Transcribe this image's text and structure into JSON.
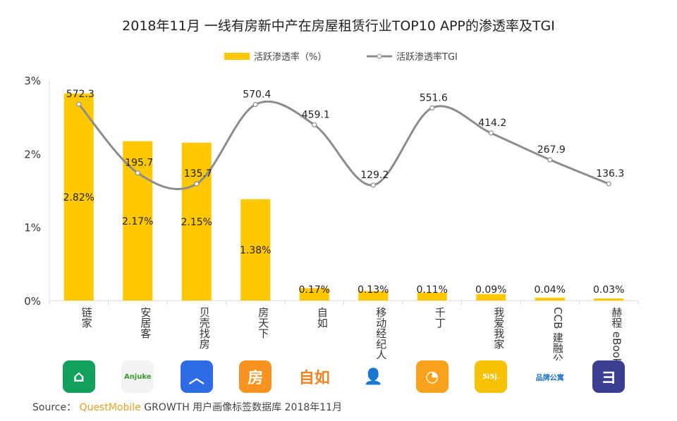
{
  "title": "2018年11月 一线有房新中产在房屋租赁行业TOP10 APP的渗透率及TGI",
  "legend": {
    "bar": "活跃渗透率（%）",
    "line": "活跃渗透率TGI"
  },
  "source": {
    "label": "Source：",
    "brand": "QuestMobile",
    "text": "GROWTH 用户画像标签数据库 2018年11月"
  },
  "colors": {
    "bar": "#ffc800",
    "line": "#8c8c8c"
  },
  "chart_data": {
    "type": "bar",
    "title": "2018年11月 一线有房新中产在房屋租赁行业TOP10 APP的渗透率及TGI",
    "categories": [
      "链家",
      "安居客",
      "贝壳找房",
      "房天下",
      "自如",
      "移动经纪人",
      "千丁",
      "我爱我家",
      "建融公寓 CCB",
      "eBooking 赫程"
    ],
    "series": [
      {
        "name": "活跃渗透率（%）",
        "type": "bar",
        "values": [
          2.82,
          2.17,
          2.15,
          1.38,
          0.17,
          0.13,
          0.11,
          0.09,
          0.04,
          0.03
        ],
        "labels": [
          "2.82%",
          "2.17%",
          "2.15%",
          "1.38%",
          "0.17%",
          "0.13%",
          "0.11%",
          "0.09%",
          "0.04%",
          "0.03%"
        ]
      },
      {
        "name": "活跃渗透率TGI",
        "type": "line",
        "values": [
          572.3,
          195.7,
          135.7,
          570.4,
          459.1,
          129.2,
          551.6,
          414.2,
          267.9,
          136.3
        ],
        "labels": [
          "572.3",
          "195.7",
          "135.7",
          "570.4",
          "459.1",
          "129.2",
          "551.6",
          "414.2",
          "267.9",
          "136.3"
        ]
      }
    ],
    "yticks": [
      "0%",
      "1%",
      "2%",
      "3%"
    ],
    "ylim": [
      0,
      3
    ],
    "y2lim": [
      -503,
      703
    ],
    "grid": false,
    "legend_position": "top-center"
  },
  "icons": [
    {
      "name": "lianjia-icon",
      "text": "⌂",
      "bg": "#12a05c"
    },
    {
      "name": "anjuke-icon",
      "text": "Anjuke",
      "bg": "#f3f3f3"
    },
    {
      "name": "beike-icon",
      "text": "︿",
      "bg": "#2e6be6"
    },
    {
      "name": "fang-icon",
      "text": "房",
      "bg": "#f7931e"
    },
    {
      "name": "ziroom-icon",
      "text": "自如",
      "bg": "#ffffff"
    },
    {
      "name": "agent-icon",
      "text": "👤",
      "bg": "#ffffff"
    },
    {
      "name": "qianding-icon",
      "text": "◔",
      "bg": "#f9a21b"
    },
    {
      "name": "5i5j-icon",
      "text": "5i5j.",
      "bg": "#f8c100"
    },
    {
      "name": "ccb-icon",
      "text": "品牌公寓",
      "bg": "#ffffff"
    },
    {
      "name": "ebooking-icon",
      "text": "ヨ",
      "bg": "#3b3f91"
    }
  ]
}
